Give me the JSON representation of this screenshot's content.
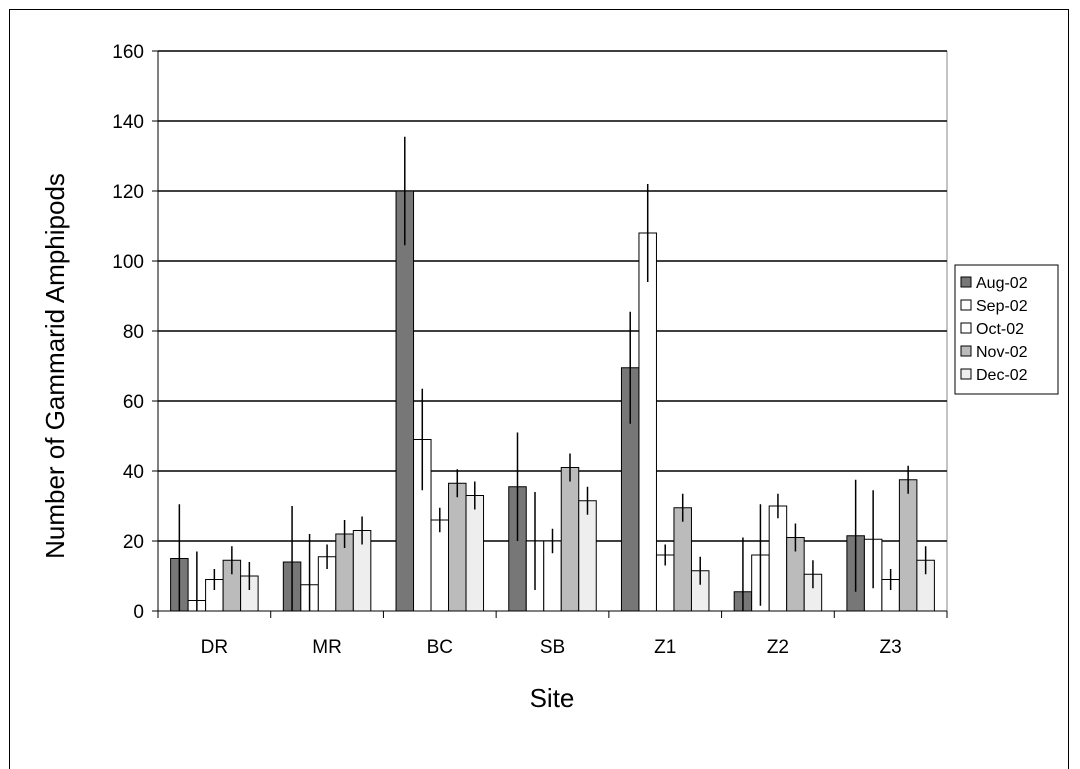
{
  "chart_data": {
    "type": "bar",
    "title": "",
    "xlabel": "Site",
    "ylabel": "Number of Gammarid Amphipods",
    "ylim": [
      0,
      160
    ],
    "yticks": [
      0,
      20,
      40,
      60,
      80,
      100,
      120,
      140,
      160
    ],
    "grid": true,
    "legend_position": "right",
    "categories": [
      "DR",
      "MR",
      "BC",
      "SB",
      "Z1",
      "Z2",
      "Z3"
    ],
    "series": [
      {
        "name": "Aug-02",
        "color": "#777777",
        "values": [
          15,
          14,
          120,
          35.5,
          69.5,
          5.5,
          21.5
        ],
        "errors": [
          15.5,
          16,
          15.5,
          15.5,
          16,
          15.5,
          16
        ]
      },
      {
        "name": "Sep-02",
        "color": "#ffffff",
        "values": [
          3,
          7.5,
          49,
          20,
          108,
          16,
          20.5
        ],
        "errors": [
          14,
          14.5,
          14.5,
          14,
          14,
          14.5,
          14
        ]
      },
      {
        "name": "Oct-02",
        "color": "#ffffff",
        "values": [
          9,
          15.5,
          26,
          20,
          16,
          30,
          9
        ],
        "errors": [
          3,
          3.5,
          3.5,
          3.5,
          3,
          3.5,
          3
        ]
      },
      {
        "name": "Nov-02",
        "color": "#bbbbbb",
        "values": [
          14.5,
          22,
          36.5,
          41,
          29.5,
          21,
          37.5
        ],
        "errors": [
          4,
          4,
          4,
          4,
          4,
          4,
          4
        ]
      },
      {
        "name": "Dec-02",
        "color": "#eeeeee",
        "values": [
          10,
          23,
          33,
          31.5,
          11.5,
          10.5,
          14.5
        ],
        "errors": [
          4,
          4,
          4,
          4,
          4,
          4,
          4
        ]
      }
    ]
  }
}
